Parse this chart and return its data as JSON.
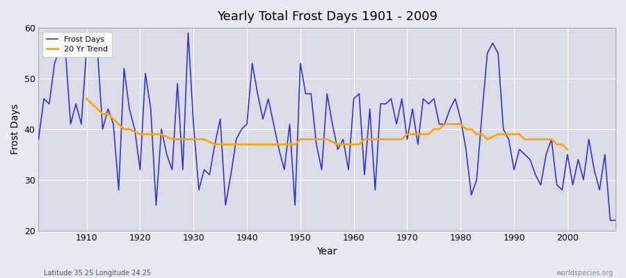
{
  "title": "Yearly Total Frost Days 1901 - 2009",
  "xlabel": "Year",
  "ylabel": "Frost Days",
  "bottom_left_label": "Latitude 35.25 Longitude 24.25",
  "bottom_right_label": "worldspecies.org",
  "legend_labels": [
    "Frost Days",
    "20 Yr Trend"
  ],
  "frost_color": "#3333cc",
  "trend_color": "#FFA500",
  "bg_color": "#e8e8f0",
  "plot_bg_color": "#dcdce8",
  "grid_color": "#ffffff",
  "ylim": [
    20,
    60
  ],
  "xlim": [
    1901,
    2009
  ],
  "yticks": [
    20,
    30,
    40,
    50,
    60
  ],
  "xticks": [
    1910,
    1920,
    1930,
    1940,
    1950,
    1960,
    1970,
    1980,
    1990,
    2000
  ],
  "years": [
    1901,
    1902,
    1903,
    1904,
    1905,
    1906,
    1907,
    1908,
    1909,
    1910,
    1911,
    1912,
    1913,
    1914,
    1915,
    1916,
    1917,
    1918,
    1919,
    1920,
    1921,
    1922,
    1923,
    1924,
    1925,
    1926,
    1927,
    1928,
    1929,
    1930,
    1931,
    1932,
    1933,
    1934,
    1935,
    1936,
    1937,
    1938,
    1939,
    1940,
    1941,
    1942,
    1943,
    1944,
    1945,
    1946,
    1947,
    1948,
    1949,
    1950,
    1951,
    1952,
    1953,
    1954,
    1955,
    1956,
    1957,
    1958,
    1959,
    1960,
    1961,
    1962,
    1963,
    1964,
    1965,
    1966,
    1967,
    1968,
    1969,
    1970,
    1971,
    1972,
    1973,
    1974,
    1975,
    1976,
    1977,
    1978,
    1979,
    1980,
    1981,
    1982,
    1983,
    1984,
    1985,
    1986,
    1987,
    1988,
    1989,
    1990,
    1991,
    1992,
    1993,
    1994,
    1995,
    1996,
    1997,
    1998,
    1999,
    2000,
    2001,
    2002,
    2003,
    2004,
    2005,
    2006,
    2007,
    2008,
    2009
  ],
  "frost_days": [
    38,
    46,
    45,
    53,
    56,
    56,
    41,
    45,
    41,
    56,
    55,
    56,
    40,
    44,
    41,
    28,
    52,
    44,
    40,
    32,
    51,
    44,
    25,
    40,
    35,
    32,
    49,
    32,
    59,
    41,
    28,
    32,
    31,
    37,
    42,
    25,
    31,
    38,
    40,
    41,
    53,
    47,
    42,
    46,
    41,
    36,
    32,
    41,
    25,
    53,
    47,
    47,
    37,
    32,
    47,
    41,
    36,
    38,
    32,
    46,
    47,
    31,
    44,
    28,
    45,
    45,
    46,
    41,
    46,
    38,
    44,
    37,
    46,
    45,
    46,
    41,
    41,
    44,
    46,
    42,
    36,
    27,
    30,
    43,
    55,
    57,
    55,
    40,
    38,
    32,
    36,
    35,
    34,
    31,
    29,
    35,
    38,
    29,
    28,
    35,
    29,
    34,
    30,
    38,
    32,
    28,
    35,
    22,
    22
  ],
  "trend_years": [
    1910,
    1911,
    1912,
    1913,
    1914,
    1915,
    1916,
    1917,
    1918,
    1919,
    1920,
    1921,
    1922,
    1923,
    1924,
    1925,
    1926,
    1927,
    1928,
    1929,
    1930,
    1931,
    1932,
    1933,
    1934,
    1935,
    1936,
    1937,
    1938,
    1939,
    1940,
    1941,
    1942,
    1943,
    1944,
    1945,
    1946,
    1947,
    1948,
    1949,
    1950,
    1951,
    1952,
    1953,
    1954,
    1955,
    1956,
    1957,
    1958,
    1959,
    1960,
    1961,
    1962,
    1963,
    1964,
    1965,
    1966,
    1967,
    1968,
    1969,
    1970,
    1971,
    1972,
    1973,
    1974,
    1975,
    1976,
    1977,
    1978,
    1979,
    1980,
    1981,
    1982,
    1983,
    1984,
    1985,
    1986,
    1987,
    1988,
    1989,
    1990,
    1991,
    1992,
    1993,
    1994,
    1995,
    1996,
    1997,
    1998,
    1999,
    2000
  ],
  "trend_values": [
    46.0,
    45.0,
    44.0,
    43.0,
    43.0,
    42.0,
    41.0,
    40.0,
    40.0,
    39.5,
    39.0,
    39.0,
    39.0,
    39.0,
    39.0,
    38.5,
    38.0,
    38.0,
    38.0,
    38.0,
    38.0,
    38.0,
    38.0,
    37.5,
    37.0,
    37.0,
    37.0,
    37.0,
    37.0,
    37.0,
    37.0,
    37.0,
    37.0,
    37.0,
    37.0,
    37.0,
    37.0,
    37.0,
    37.0,
    37.0,
    38.0,
    38.0,
    38.0,
    38.0,
    38.0,
    38.0,
    37.5,
    37.0,
    37.0,
    37.0,
    37.0,
    37.0,
    38.0,
    38.0,
    38.0,
    38.0,
    38.0,
    38.0,
    38.0,
    38.0,
    39.0,
    39.0,
    39.0,
    39.0,
    39.0,
    40.0,
    40.0,
    41.0,
    41.0,
    41.0,
    41.0,
    40.0,
    40.0,
    39.0,
    39.0,
    38.0,
    38.5,
    39.0,
    39.0,
    39.0,
    39.0,
    39.0,
    38.0,
    38.0,
    38.0,
    38.0,
    38.0,
    38.0,
    37.0,
    37.0,
    36.0
  ]
}
